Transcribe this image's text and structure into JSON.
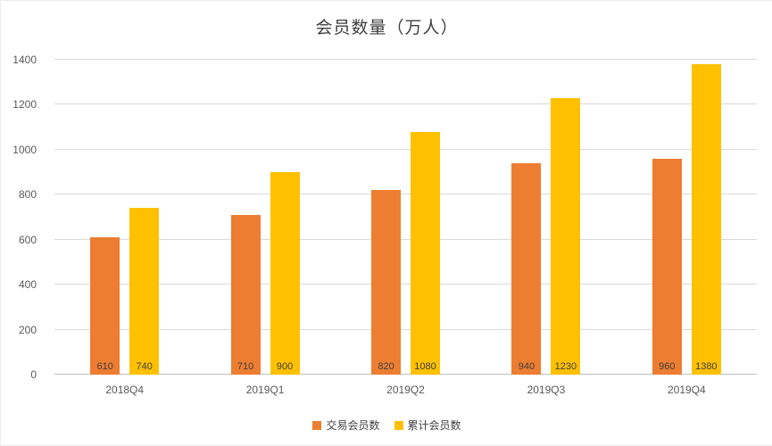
{
  "chart_data": {
    "type": "bar",
    "title": "会员数量（万人）",
    "categories": [
      "2018Q4",
      "2019Q1",
      "2019Q2",
      "2019Q3",
      "2019Q4"
    ],
    "series": [
      {
        "name": "交易会员数",
        "color": "#ED7D31",
        "values": [
          610,
          710,
          820,
          940,
          960
        ]
      },
      {
        "name": "累计会员数",
        "color": "#FFC000",
        "values": [
          740,
          900,
          1080,
          1230,
          1380
        ]
      }
    ],
    "xlabel": "",
    "ylabel": "",
    "ylim": [
      0,
      1400
    ],
    "yticks": [
      0,
      200,
      400,
      600,
      800,
      1000,
      1200,
      1400
    ],
    "grid": true,
    "legend_position": "bottom",
    "data_labels": "inside-base"
  },
  "colors": {
    "grid": "#D9D9D9",
    "axis": "#BFBFBF",
    "title": "#404040",
    "tick_label": "#595959",
    "data_label": "#404040",
    "background": "#FFFFFF"
  }
}
